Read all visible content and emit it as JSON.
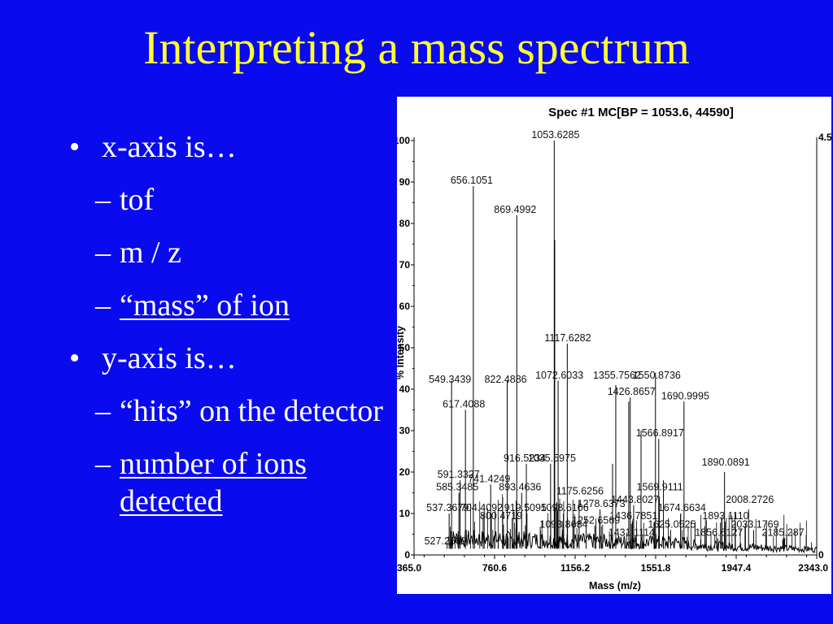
{
  "slide": {
    "title": "Interpreting a mass spectrum",
    "bullets": [
      {
        "text": "x-axis is…",
        "subs": [
          "tof",
          "m / z",
          "“mass” of ion"
        ]
      },
      {
        "text": "y-axis is…",
        "subs": [
          "“hits” on the detector",
          "number of ions detected"
        ]
      }
    ]
  },
  "chart_data": {
    "type": "line",
    "title": "Spec #1 MC[BP = 1053.6, 44590]",
    "xlabel": "Mass (m/z)",
    "ylabel": "% Intensity",
    "xlim": [
      365.0,
      2343.0
    ],
    "ylim": [
      0,
      100
    ],
    "x_ticks": [
      "365.0",
      "760.6",
      "1156.2",
      "1551.8",
      "1947.4",
      "2343.0"
    ],
    "y_ticks": [
      "0",
      "10",
      "20",
      "30",
      "40",
      "50",
      "60",
      "70",
      "80",
      "90",
      "100"
    ],
    "right_axis_labels": [
      "4.5",
      "0"
    ],
    "peak_labels": [
      {
        "text": "1053.6285",
        "x": 1053.6,
        "y": 100
      },
      {
        "text": "656.1051",
        "x": 656.1,
        "y": 89
      },
      {
        "text": "869.4992",
        "x": 869.5,
        "y": 82
      },
      {
        "text": "1117.6282",
        "x": 1117.6,
        "y": 51
      },
      {
        "text": "549.3439",
        "x": 549.3,
        "y": 41
      },
      {
        "text": "822.4886",
        "x": 822.5,
        "y": 41
      },
      {
        "text": "1072.6033",
        "x": 1072.6,
        "y": 42
      },
      {
        "text": "1355.7562",
        "x": 1355.8,
        "y": 42
      },
      {
        "text": "1550.8736",
        "x": 1550.9,
        "y": 42
      },
      {
        "text": "1426.8657",
        "x": 1426.9,
        "y": 38
      },
      {
        "text": "1690.9995",
        "x": 1691.0,
        "y": 37
      },
      {
        "text": "617.4088",
        "x": 617.4,
        "y": 35
      },
      {
        "text": "1566.8917",
        "x": 1566.9,
        "y": 28
      },
      {
        "text": "916.5234",
        "x": 916.5,
        "y": 22
      },
      {
        "text": "1035.5975",
        "x": 1035.6,
        "y": 22
      },
      {
        "text": "1890.0891",
        "x": 1890.1,
        "y": 21
      },
      {
        "text": "591.3327",
        "x": 591.3,
        "y": 18
      },
      {
        "text": "741.4249",
        "x": 741.4,
        "y": 17
      },
      {
        "text": "585.3485",
        "x": 585.3,
        "y": 15
      },
      {
        "text": "893.4636",
        "x": 893.5,
        "y": 15
      },
      {
        "text": "1175.6256",
        "x": 1175.6,
        "y": 14
      },
      {
        "text": "1569.9111",
        "x": 1569.9,
        "y": 15
      },
      {
        "text": "1443.8027",
        "x": 1443.8,
        "y": 12
      },
      {
        "text": "1278.6373",
        "x": 1278.6,
        "y": 11
      },
      {
        "text": "2008.2726",
        "x": 2008.3,
        "y": 12
      },
      {
        "text": "537.3679",
        "x": 537.4,
        "y": 10
      },
      {
        "text": "704.4092",
        "x": 704.4,
        "y": 10
      },
      {
        "text": "919.5095",
        "x": 919.5,
        "y": 10
      },
      {
        "text": "1098.6106",
        "x": 1098.6,
        "y": 10
      },
      {
        "text": "1674.6634",
        "x": 1674.7,
        "y": 10
      },
      {
        "text": "800.4719",
        "x": 800.5,
        "y": 8
      },
      {
        "text": "1436.7851",
        "x": 1436.8,
        "y": 8
      },
      {
        "text": "1893.1110",
        "x": 1893.1,
        "y": 8
      },
      {
        "text": "1252.6569",
        "x": 1252.7,
        "y": 7
      },
      {
        "text": "1093.8684",
        "x": 1093.9,
        "y": 6
      },
      {
        "text": "1625.0525",
        "x": 1625.1,
        "y": 6
      },
      {
        "text": "2033.1769",
        "x": 2033.2,
        "y": 6
      },
      {
        "text": "1431.1114",
        "x": 1431.1,
        "y": 4
      },
      {
        "text": "1856.6127",
        "x": 1856.6,
        "y": 4
      },
      {
        "text": "2185.287",
        "x": 2185.3,
        "y": 4
      },
      {
        "text": "527.2609",
        "x": 527.3,
        "y": 2
      }
    ],
    "peaks": [
      {
        "x": 1053.6,
        "y": 100
      },
      {
        "x": 656.1,
        "y": 89
      },
      {
        "x": 869.5,
        "y": 82
      },
      {
        "x": 1056.0,
        "y": 76
      },
      {
        "x": 1117.6,
        "y": 51
      },
      {
        "x": 549.3,
        "y": 42
      },
      {
        "x": 822.5,
        "y": 42
      },
      {
        "x": 1072.6,
        "y": 42
      },
      {
        "x": 1355.8,
        "y": 41
      },
      {
        "x": 1550.9,
        "y": 44
      },
      {
        "x": 1426.9,
        "y": 38
      },
      {
        "x": 1691.0,
        "y": 37
      },
      {
        "x": 617.4,
        "y": 35
      },
      {
        "x": 1566.9,
        "y": 28
      },
      {
        "x": 916.5,
        "y": 22
      },
      {
        "x": 1035.6,
        "y": 22
      },
      {
        "x": 1890.1,
        "y": 20
      },
      {
        "x": 591.3,
        "y": 18
      },
      {
        "x": 741.4,
        "y": 17
      },
      {
        "x": 585.3,
        "y": 15
      },
      {
        "x": 893.5,
        "y": 15
      },
      {
        "x": 1175.6,
        "y": 13
      },
      {
        "x": 1569.9,
        "y": 14
      },
      {
        "x": 1443.8,
        "y": 12
      },
      {
        "x": 1278.6,
        "y": 11
      },
      {
        "x": 2008.3,
        "y": 11
      },
      {
        "x": 537.4,
        "y": 10
      },
      {
        "x": 704.4,
        "y": 10
      },
      {
        "x": 919.5,
        "y": 10
      },
      {
        "x": 1098.6,
        "y": 10
      },
      {
        "x": 1674.7,
        "y": 10
      },
      {
        "x": 800.5,
        "y": 8
      },
      {
        "x": 1436.8,
        "y": 8
      },
      {
        "x": 1893.1,
        "y": 8
      },
      {
        "x": 1252.7,
        "y": 7
      },
      {
        "x": 1093.9,
        "y": 6
      },
      {
        "x": 1625.1,
        "y": 6
      },
      {
        "x": 2033.2,
        "y": 6
      },
      {
        "x": 1431.1,
        "y": 4
      },
      {
        "x": 1856.6,
        "y": 4
      },
      {
        "x": 2185.3,
        "y": 4
      },
      {
        "x": 527.3,
        "y": 3
      },
      {
        "x": 1419.5,
        "y": 37
      },
      {
        "x": 1480.0,
        "y": 30
      },
      {
        "x": 1340.0,
        "y": 22
      },
      {
        "x": 1590.0,
        "y": 18
      },
      {
        "x": 1210.0,
        "y": 9
      },
      {
        "x": 1745.0,
        "y": 8
      }
    ]
  }
}
